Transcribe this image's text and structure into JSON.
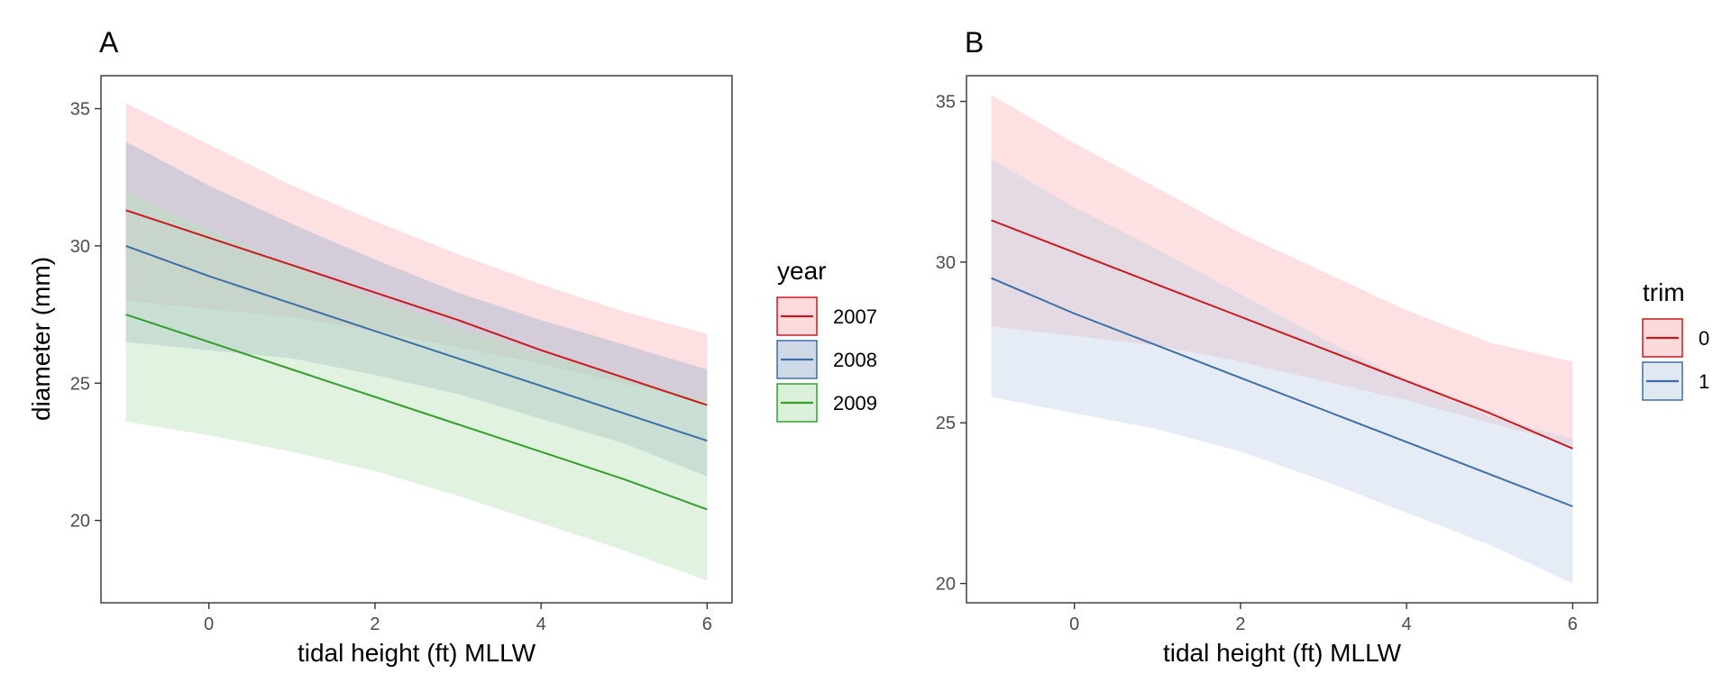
{
  "chart_data": [
    {
      "type": "line",
      "panel": "A",
      "xlabel": "tidal height (ft) MLLW",
      "ylabel": "diameter (mm)",
      "xlim": [
        -1.3,
        6.3
      ],
      "ylim": [
        17,
        36.2
      ],
      "xticks": [
        0,
        2,
        4,
        6
      ],
      "yticks": [
        20,
        25,
        30,
        35
      ],
      "grid": false,
      "legend": {
        "title": "year",
        "position": "right"
      },
      "x": [
        -1,
        0,
        1,
        2,
        3,
        4,
        5,
        6
      ],
      "series": [
        {
          "name": "2007",
          "color": "#cb181d",
          "fill": "#f8b6bb",
          "values": [
            31.3,
            30.3,
            29.3,
            28.3,
            27.3,
            26.2,
            25.2,
            24.2
          ],
          "lower": [
            28.0,
            27.7,
            27.4,
            26.9,
            26.3,
            25.7,
            25.0,
            24.3
          ],
          "upper": [
            35.2,
            33.7,
            32.2,
            30.9,
            29.7,
            28.6,
            27.6,
            26.8
          ]
        },
        {
          "name": "2008",
          "color": "#3d6ea8",
          "fill": "#9db3cc",
          "values": [
            30.0,
            28.9,
            27.9,
            26.9,
            25.9,
            24.9,
            23.9,
            22.9
          ],
          "lower": [
            26.5,
            26.2,
            25.9,
            25.3,
            24.6,
            23.7,
            22.8,
            21.6
          ],
          "upper": [
            33.8,
            32.2,
            30.8,
            29.5,
            28.3,
            27.3,
            26.4,
            25.5
          ]
        },
        {
          "name": "2009",
          "color": "#33a02c",
          "fill": "#b8e1b4",
          "values": [
            27.5,
            26.5,
            25.5,
            24.5,
            23.5,
            22.5,
            21.5,
            20.4
          ],
          "lower": [
            23.6,
            23.1,
            22.5,
            21.8,
            20.9,
            19.9,
            18.9,
            17.8
          ],
          "upper": [
            32.0,
            30.6,
            29.3,
            28.1,
            27.0,
            26.1,
            25.2,
            24.4
          ]
        }
      ]
    },
    {
      "type": "line",
      "panel": "B",
      "xlabel": "tidal height (ft) MLLW",
      "ylabel": "",
      "xlim": [
        -1.3,
        6.3
      ],
      "ylim": [
        19.4,
        35.8
      ],
      "xticks": [
        0,
        2,
        4,
        6
      ],
      "yticks": [
        20,
        25,
        30,
        35
      ],
      "grid": false,
      "legend": {
        "title": "trim",
        "position": "right"
      },
      "x": [
        -1,
        0,
        1,
        2,
        3,
        4,
        5,
        6
      ],
      "series": [
        {
          "name": "0",
          "color": "#cb181d",
          "fill": "#f8b6bb",
          "values": [
            31.3,
            30.3,
            29.3,
            28.3,
            27.3,
            26.3,
            25.3,
            24.2
          ],
          "lower": [
            28.0,
            27.7,
            27.4,
            26.9,
            26.3,
            25.7,
            25.0,
            24.3
          ],
          "upper": [
            35.2,
            33.7,
            32.3,
            30.9,
            29.7,
            28.5,
            27.5,
            26.9
          ]
        },
        {
          "name": "1",
          "color": "#3d6ea8",
          "fill": "#c2d2e6",
          "values": [
            29.5,
            28.4,
            27.4,
            26.4,
            25.4,
            24.4,
            23.4,
            22.4
          ],
          "lower": [
            25.8,
            25.3,
            24.8,
            24.1,
            23.2,
            22.2,
            21.2,
            20.0
          ],
          "upper": [
            33.2,
            31.7,
            30.4,
            29.0,
            27.6,
            26.3,
            25.2,
            24.5
          ]
        }
      ]
    }
  ]
}
